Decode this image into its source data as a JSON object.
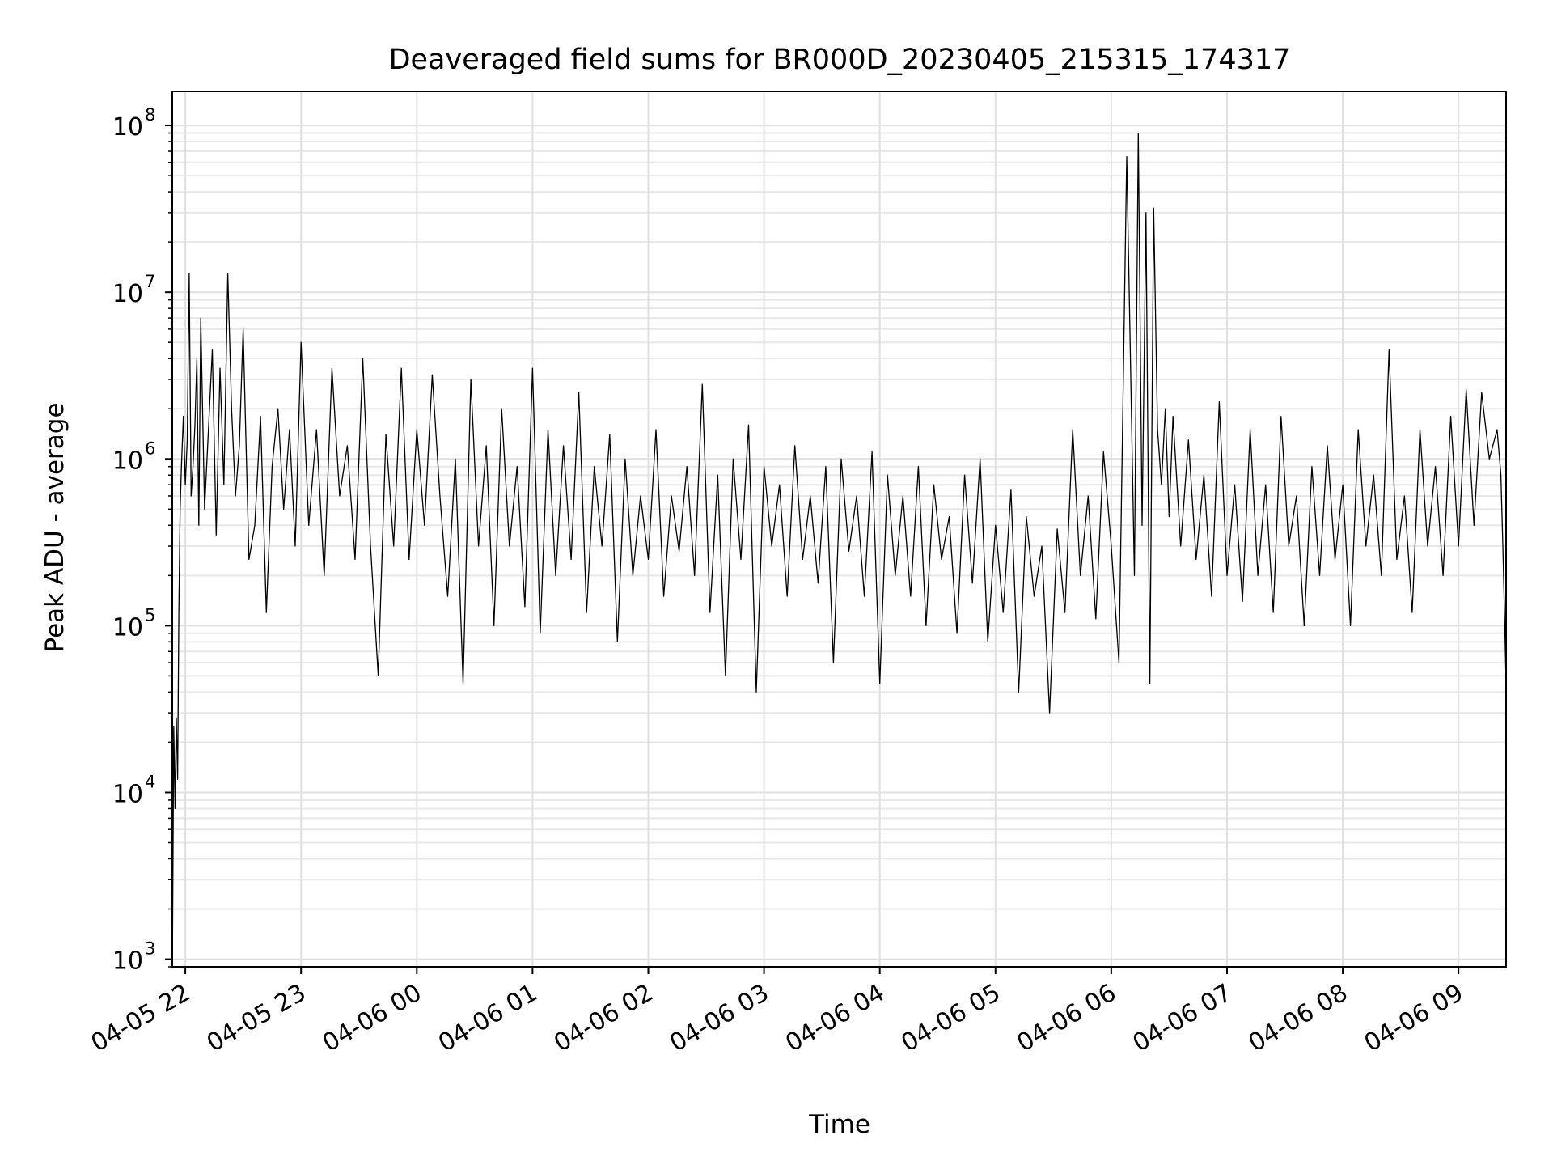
{
  "chart_data": {
    "type": "line",
    "title": "Deaveraged field sums for BR000D_20230405_215315_174317",
    "xlabel": "Time",
    "ylabel": "Peak ADU - average",
    "yscale": "log",
    "ylim": [
      900,
      160000000
    ],
    "xlim": [
      "2023-04-05T21:53:15",
      "2023-04-06T09:24:40"
    ],
    "grid": true,
    "legend": "none",
    "line_color": "#000000",
    "x_ticks": [
      {
        "t": "2023-04-05T22:00:00",
        "label": "04-05 22"
      },
      {
        "t": "2023-04-05T23:00:00",
        "label": "04-05 23"
      },
      {
        "t": "2023-04-06T00:00:00",
        "label": "04-06 00"
      },
      {
        "t": "2023-04-06T01:00:00",
        "label": "04-06 01"
      },
      {
        "t": "2023-04-06T02:00:00",
        "label": "04-06 02"
      },
      {
        "t": "2023-04-06T03:00:00",
        "label": "04-06 03"
      },
      {
        "t": "2023-04-06T04:00:00",
        "label": "04-06 04"
      },
      {
        "t": "2023-04-06T05:00:00",
        "label": "04-06 05"
      },
      {
        "t": "2023-04-06T06:00:00",
        "label": "04-06 06"
      },
      {
        "t": "2023-04-06T07:00:00",
        "label": "04-06 07"
      },
      {
        "t": "2023-04-06T08:00:00",
        "label": "04-06 08"
      },
      {
        "t": "2023-04-06T09:00:00",
        "label": "04-06 09"
      }
    ],
    "y_ticks": [
      {
        "value": 1000,
        "base": "10",
        "exp": "3"
      },
      {
        "value": 10000,
        "base": "10",
        "exp": "4"
      },
      {
        "value": 100000,
        "base": "10",
        "exp": "5"
      },
      {
        "value": 1000000,
        "base": "10",
        "exp": "6"
      },
      {
        "value": 10000000,
        "base": "10",
        "exp": "7"
      },
      {
        "value": 100000000,
        "base": "10",
        "exp": "8"
      }
    ],
    "series": [
      {
        "x": [
          "2023-04-05T21:53:20",
          "2023-04-05T21:54:00",
          "2023-04-05T21:54:40",
          "2023-04-05T21:55:20",
          "2023-04-05T21:56:00",
          "2023-04-05T21:56:40",
          "2023-04-05T21:57:20",
          "2023-04-05T21:58:00",
          "2023-04-05T21:59:00",
          "2023-04-05T22:00:00",
          "2023-04-05T22:01:00",
          "2023-04-05T22:02:00",
          "2023-04-05T22:03:00",
          "2023-04-05T22:04:00",
          "2023-04-05T22:05:00",
          "2023-04-05T22:06:00",
          "2023-04-05T22:07:00",
          "2023-04-05T22:08:00",
          "2023-04-05T22:10:00",
          "2023-04-05T22:12:00",
          "2023-04-05T22:14:00",
          "2023-04-05T22:16:00",
          "2023-04-05T22:18:00",
          "2023-04-05T22:20:00",
          "2023-04-05T22:22:00",
          "2023-04-05T22:24:00",
          "2023-04-05T22:26:00",
          "2023-04-05T22:28:00",
          "2023-04-05T22:30:00",
          "2023-04-05T22:33:00",
          "2023-04-05T22:36:00",
          "2023-04-05T22:39:00",
          "2023-04-05T22:42:00",
          "2023-04-05T22:45:00",
          "2023-04-05T22:48:00",
          "2023-04-05T22:51:00",
          "2023-04-05T22:54:00",
          "2023-04-05T22:57:00",
          "2023-04-05T23:00:00",
          "2023-04-05T23:04:00",
          "2023-04-05T23:08:00",
          "2023-04-05T23:12:00",
          "2023-04-05T23:16:00",
          "2023-04-05T23:20:00",
          "2023-04-05T23:24:00",
          "2023-04-05T23:28:00",
          "2023-04-05T23:32:00",
          "2023-04-05T23:36:00",
          "2023-04-05T23:40:00",
          "2023-04-05T23:44:00",
          "2023-04-05T23:48:00",
          "2023-04-05T23:52:00",
          "2023-04-05T23:56:00",
          "2023-04-06T00:00:00",
          "2023-04-06T00:04:00",
          "2023-04-06T00:08:00",
          "2023-04-06T00:12:00",
          "2023-04-06T00:16:00",
          "2023-04-06T00:20:00",
          "2023-04-06T00:24:00",
          "2023-04-06T00:28:00",
          "2023-04-06T00:32:00",
          "2023-04-06T00:36:00",
          "2023-04-06T00:40:00",
          "2023-04-06T00:44:00",
          "2023-04-06T00:48:00",
          "2023-04-06T00:52:00",
          "2023-04-06T00:56:00",
          "2023-04-06T01:00:00",
          "2023-04-06T01:04:00",
          "2023-04-06T01:08:00",
          "2023-04-06T01:12:00",
          "2023-04-06T01:16:00",
          "2023-04-06T01:20:00",
          "2023-04-06T01:24:00",
          "2023-04-06T01:28:00",
          "2023-04-06T01:32:00",
          "2023-04-06T01:36:00",
          "2023-04-06T01:40:00",
          "2023-04-06T01:44:00",
          "2023-04-06T01:48:00",
          "2023-04-06T01:52:00",
          "2023-04-06T01:56:00",
          "2023-04-06T02:00:00",
          "2023-04-06T02:04:00",
          "2023-04-06T02:08:00",
          "2023-04-06T02:12:00",
          "2023-04-06T02:16:00",
          "2023-04-06T02:20:00",
          "2023-04-06T02:24:00",
          "2023-04-06T02:28:00",
          "2023-04-06T02:32:00",
          "2023-04-06T02:36:00",
          "2023-04-06T02:40:00",
          "2023-04-06T02:44:00",
          "2023-04-06T02:48:00",
          "2023-04-06T02:52:00",
          "2023-04-06T02:56:00",
          "2023-04-06T03:00:00",
          "2023-04-06T03:04:00",
          "2023-04-06T03:08:00",
          "2023-04-06T03:12:00",
          "2023-04-06T03:16:00",
          "2023-04-06T03:20:00",
          "2023-04-06T03:24:00",
          "2023-04-06T03:28:00",
          "2023-04-06T03:32:00",
          "2023-04-06T03:36:00",
          "2023-04-06T03:40:00",
          "2023-04-06T03:44:00",
          "2023-04-06T03:48:00",
          "2023-04-06T03:52:00",
          "2023-04-06T03:56:00",
          "2023-04-06T04:00:00",
          "2023-04-06T04:04:00",
          "2023-04-06T04:08:00",
          "2023-04-06T04:12:00",
          "2023-04-06T04:16:00",
          "2023-04-06T04:20:00",
          "2023-04-06T04:24:00",
          "2023-04-06T04:28:00",
          "2023-04-06T04:32:00",
          "2023-04-06T04:36:00",
          "2023-04-06T04:40:00",
          "2023-04-06T04:44:00",
          "2023-04-06T04:48:00",
          "2023-04-06T04:52:00",
          "2023-04-06T04:56:00",
          "2023-04-06T05:00:00",
          "2023-04-06T05:04:00",
          "2023-04-06T05:08:00",
          "2023-04-06T05:12:00",
          "2023-04-06T05:16:00",
          "2023-04-06T05:20:00",
          "2023-04-06T05:24:00",
          "2023-04-06T05:28:00",
          "2023-04-06T05:32:00",
          "2023-04-06T05:36:00",
          "2023-04-06T05:40:00",
          "2023-04-06T05:44:00",
          "2023-04-06T05:48:00",
          "2023-04-06T05:52:00",
          "2023-04-06T05:56:00",
          "2023-04-06T06:00:00",
          "2023-04-06T06:04:00",
          "2023-04-06T06:08:00",
          "2023-04-06T06:12:00",
          "2023-04-06T06:14:00",
          "2023-04-06T06:16:00",
          "2023-04-06T06:18:00",
          "2023-04-06T06:20:00",
          "2023-04-06T06:22:00",
          "2023-04-06T06:24:00",
          "2023-04-06T06:26:00",
          "2023-04-06T06:28:00",
          "2023-04-06T06:30:00",
          "2023-04-06T06:32:00",
          "2023-04-06T06:36:00",
          "2023-04-06T06:40:00",
          "2023-04-06T06:44:00",
          "2023-04-06T06:48:00",
          "2023-04-06T06:52:00",
          "2023-04-06T06:56:00",
          "2023-04-06T07:00:00",
          "2023-04-06T07:04:00",
          "2023-04-06T07:08:00",
          "2023-04-06T07:12:00",
          "2023-04-06T07:16:00",
          "2023-04-06T07:20:00",
          "2023-04-06T07:24:00",
          "2023-04-06T07:28:00",
          "2023-04-06T07:32:00",
          "2023-04-06T07:36:00",
          "2023-04-06T07:40:00",
          "2023-04-06T07:44:00",
          "2023-04-06T07:48:00",
          "2023-04-06T07:52:00",
          "2023-04-06T07:56:00",
          "2023-04-06T08:00:00",
          "2023-04-06T08:04:00",
          "2023-04-06T08:08:00",
          "2023-04-06T08:12:00",
          "2023-04-06T08:16:00",
          "2023-04-06T08:20:00",
          "2023-04-06T08:24:00",
          "2023-04-06T08:28:00",
          "2023-04-06T08:32:00",
          "2023-04-06T08:36:00",
          "2023-04-06T08:40:00",
          "2023-04-06T08:44:00",
          "2023-04-06T08:48:00",
          "2023-04-06T08:52:00",
          "2023-04-06T08:56:00",
          "2023-04-06T09:00:00",
          "2023-04-06T09:04:00",
          "2023-04-06T09:08:00",
          "2023-04-06T09:12:00",
          "2023-04-06T09:16:00",
          "2023-04-06T09:20:00",
          "2023-04-06T09:22:00",
          "2023-04-06T09:23:00",
          "2023-04-06T09:24:00",
          "2023-04-06T09:24:30"
        ],
        "y": [
          1000,
          25000,
          8000,
          28000,
          12000,
          120000,
          500000,
          900000,
          1800000,
          700000,
          1300000,
          13000000,
          600000,
          900000,
          1600000,
          4000000,
          400000,
          7000000,
          500000,
          1500000,
          4500000,
          350000,
          3500000,
          700000,
          13000000,
          2000000,
          600000,
          1200000,
          6000000,
          250000,
          400000,
          1800000,
          120000,
          900000,
          2000000,
          500000,
          1500000,
          300000,
          5000000,
          400000,
          1500000,
          200000,
          3500000,
          600000,
          1200000,
          250000,
          4000000,
          300000,
          50000,
          1400000,
          300000,
          3500000,
          250000,
          1500000,
          400000,
          3200000,
          600000,
          150000,
          1000000,
          45000,
          3000000,
          300000,
          1200000,
          100000,
          2000000,
          300000,
          900000,
          130000,
          3500000,
          90000,
          1500000,
          200000,
          1200000,
          250000,
          2500000,
          120000,
          900000,
          300000,
          1400000,
          80000,
          1000000,
          200000,
          600000,
          250000,
          1500000,
          150000,
          600000,
          280000,
          900000,
          200000,
          2800000,
          120000,
          800000,
          50000,
          1000000,
          250000,
          1600000,
          40000,
          900000,
          300000,
          700000,
          150000,
          1200000,
          250000,
          600000,
          180000,
          900000,
          60000,
          1000000,
          280000,
          600000,
          150000,
          1100000,
          45000,
          800000,
          200000,
          600000,
          150000,
          900000,
          100000,
          700000,
          250000,
          450000,
          90000,
          800000,
          180000,
          1000000,
          80000,
          400000,
          120000,
          650000,
          40000,
          450000,
          150000,
          300000,
          30000,
          380000,
          120000,
          1500000,
          200000,
          600000,
          110000,
          1100000,
          300000,
          60000,
          65000000,
          200000,
          90000000,
          400000,
          30000000,
          45000,
          32000000,
          1500000,
          700000,
          2000000,
          450000,
          1800000,
          300000,
          1300000,
          250000,
          800000,
          150000,
          2200000,
          200000,
          700000,
          140000,
          1500000,
          200000,
          700000,
          120000,
          1800000,
          300000,
          600000,
          100000,
          900000,
          200000,
          1200000,
          250000,
          700000,
          100000,
          1500000,
          300000,
          800000,
          200000,
          4500000,
          250000,
          600000,
          120000,
          1500000,
          300000,
          900000,
          200000,
          1800000,
          300000,
          2600000,
          400000,
          2500000,
          1000000,
          1500000,
          800000,
          300000,
          100000,
          55000
        ],
        "color": "#000000"
      }
    ]
  }
}
